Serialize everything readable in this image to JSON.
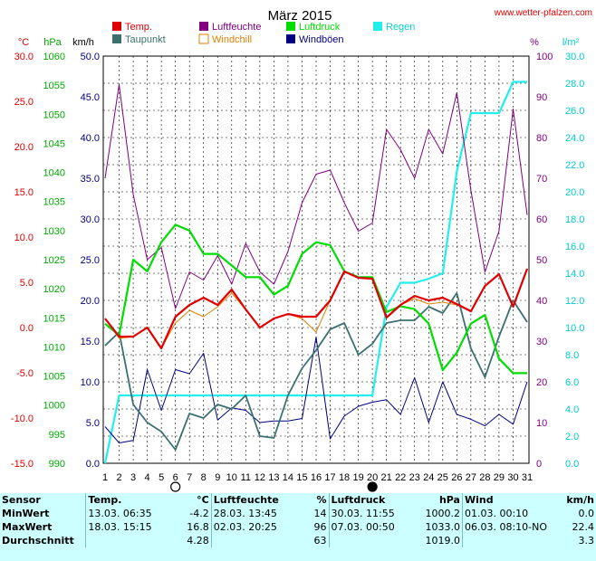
{
  "title": "März 2015",
  "source": "www.wetter-pfalzen.com",
  "axis_units": {
    "temp": "°C",
    "pressure": "hPa",
    "wind": "km/h",
    "humidity": "%",
    "rain": "l/m²"
  },
  "legend": [
    {
      "label": "Temp.",
      "color": "#e00000"
    },
    {
      "label": "Luftfeuchte",
      "color": "#800080"
    },
    {
      "label": "Luftdruck",
      "color": "#00dd00"
    },
    {
      "label": "Regen",
      "color": "#22eeee"
    },
    {
      "label": "Taupunkt",
      "color": "#3c7070"
    },
    {
      "label": "Windchill",
      "color": "#e08000"
    },
    {
      "label": "Windböen",
      "color": "#000080"
    }
  ],
  "chart_data": {
    "type": "line",
    "title": "März 2015",
    "x": [
      1,
      2,
      3,
      4,
      5,
      6,
      7,
      8,
      9,
      10,
      11,
      12,
      13,
      14,
      15,
      16,
      17,
      18,
      19,
      20,
      21,
      22,
      23,
      24,
      25,
      26,
      27,
      28,
      29,
      30,
      31
    ],
    "axes": {
      "temp": {
        "unit": "°C",
        "range": [
          -15,
          30
        ],
        "ticks": [
          "30.0",
          "25.0",
          "20.0",
          "15.0",
          "10.0",
          "5.0",
          "0.0",
          "-5.0",
          "-10.0",
          "-15.0"
        ]
      },
      "pressure": {
        "unit": "hPa",
        "range": [
          990,
          1060
        ],
        "ticks": [
          "1060",
          "1055",
          "1050",
          "1045",
          "1040",
          "1035",
          "1030",
          "1025",
          "1020",
          "1015",
          "1010",
          "1005",
          "1000",
          "995",
          "990"
        ]
      },
      "wind": {
        "unit": "km/h",
        "range": [
          0,
          50
        ],
        "ticks": [
          "50.0",
          "45.0",
          "40.0",
          "35.0",
          "30.0",
          "25.0",
          "20.0",
          "15.0",
          "10.0",
          "5.0",
          "0.0"
        ]
      },
      "humidity": {
        "unit": "%",
        "range": [
          0,
          100
        ],
        "ticks": [
          "100",
          "90",
          "80",
          "70",
          "60",
          "50",
          "40",
          "30",
          "20",
          "10",
          "0"
        ]
      },
      "rain": {
        "unit": "l/m²",
        "range": [
          0,
          30
        ],
        "ticks": [
          "30.0",
          "28.0",
          "26.0",
          "24.0",
          "22.0",
          "20.0",
          "18.0",
          "16.0",
          "14.0",
          "12.0",
          "10.0",
          "8.0",
          "6.0",
          "4.0",
          "2.0",
          "0.0"
        ]
      }
    },
    "moon_phases": [
      {
        "day": 6,
        "phase": "full"
      },
      {
        "day": 20,
        "phase": "new"
      }
    ],
    "series": [
      {
        "name": "Temp.",
        "axis": "temp",
        "color": "#e00000",
        "values": [
          1.0,
          -1.0,
          -1.0,
          0.0,
          -2.3,
          1.2,
          2.5,
          3.3,
          2.5,
          4.2,
          2.0,
          0.0,
          1.0,
          1.5,
          1.2,
          1.2,
          3.0,
          6.2,
          5.5,
          5.4,
          1.1,
          2.5,
          3.5,
          3.0,
          3.3,
          2.6,
          1.8,
          4.6,
          5.9,
          2.3,
          6.5
        ]
      },
      {
        "name": "Windchill",
        "axis": "temp",
        "color": "#e08000",
        "values": [
          1.0,
          -1.2,
          -1.0,
          0.0,
          -2.3,
          0.5,
          1.9,
          1.2,
          2.3,
          3.8,
          2.0,
          0.0,
          1.0,
          1.5,
          1.0,
          -0.5,
          3.0,
          6.2,
          5.5,
          5.4,
          1.1,
          2.5,
          3.2,
          2.6,
          2.8,
          2.5,
          1.8,
          4.6,
          5.9,
          2.3,
          6.5
        ]
      },
      {
        "name": "Taupunkt",
        "axis": "temp",
        "color": "#3c7070",
        "values": [
          -2.0,
          -0.5,
          -8.5,
          -10.5,
          -11.5,
          -13.5,
          -9.5,
          -10.0,
          -8.5,
          -9.0,
          -7.5,
          -12.0,
          -12.2,
          -7.5,
          -4.5,
          -2.5,
          -0.2,
          0.5,
          -3.0,
          -1.8,
          0.5,
          0.8,
          0.8,
          2.3,
          1.6,
          3.8,
          -2.3,
          -5.5,
          -1.0,
          3.0,
          0.6
        ]
      },
      {
        "name": "Luftfeuchte",
        "axis": "humidity",
        "color": "#800080",
        "values": [
          70,
          93,
          66,
          50,
          53,
          38,
          47,
          45,
          51,
          44,
          54,
          47,
          44,
          52,
          64,
          71,
          72,
          64,
          57,
          59,
          82,
          77,
          70,
          82,
          76,
          91,
          67,
          47,
          57,
          87,
          61
        ]
      },
      {
        "name": "Luftdruck",
        "axis": "pressure",
        "color": "#00dd00",
        "values": [
          1014,
          1012,
          1025,
          1023,
          1028,
          1031,
          1030,
          1026,
          1026,
          1024,
          1022,
          1022,
          1019,
          1020.5,
          1026,
          1028,
          1027.5,
          1023,
          1022,
          1022,
          1016,
          1017,
          1016.5,
          1014,
          1006,
          1009,
          1014,
          1015.5,
          1008,
          1005.5,
          1005.5
        ]
      },
      {
        "name": "Windböen",
        "axis": "wind",
        "color": "#000080",
        "values": [
          4.5,
          2.5,
          2.8,
          11.5,
          6.5,
          11.5,
          11.0,
          13.5,
          5.3,
          6.8,
          6.5,
          5.0,
          5.2,
          5.2,
          5.5,
          15.5,
          3.0,
          5.8,
          7.0,
          7.5,
          7.8,
          6.0,
          10.5,
          5.0,
          10.0,
          6.0,
          5.4,
          4.6,
          6.0,
          4.8,
          10.0
        ]
      },
      {
        "name": "Regen",
        "axis": "rain",
        "color": "#22eeee",
        "values": [
          0,
          5,
          5,
          5,
          5,
          5,
          5,
          5,
          5,
          5,
          5,
          5,
          5,
          5,
          5,
          5,
          5,
          5,
          5,
          5,
          11.5,
          13.3,
          13.3,
          13.6,
          14.0,
          21.5,
          25.8,
          25.8,
          25.8,
          28.1,
          28.1
        ]
      }
    ]
  },
  "stats": {
    "headers": [
      "Sensor",
      "Temp.",
      "°C",
      "Luftfeuchte",
      "%",
      "Luftdruck",
      "hPa",
      "Wind",
      "km/h"
    ],
    "rows": [
      {
        "label": "MinWert",
        "temp_time": "13.03.  06:35",
        "temp_val": "-4.2",
        "hum_time": "28.03.  13:45",
        "hum_val": "14",
        "press_time": "30.03.  11:55",
        "press_val": "1000.2",
        "wind_time": "01.03.  00:10",
        "wind_val": "0.0"
      },
      {
        "label": "MaxWert",
        "temp_time": "18.03.  15:15",
        "temp_val": "16.8",
        "hum_time": "02.03.  20:25",
        "hum_val": "96",
        "press_time": "07.03.  00:50",
        "press_val": "1033.0",
        "wind_time": "06.03.  08:10-NO",
        "wind_val": "22.4"
      },
      {
        "label": "Durchschnitt",
        "temp_time": "",
        "temp_val": "4.28",
        "hum_time": "",
        "hum_val": "63",
        "press_time": "",
        "press_val": "1019.0",
        "wind_time": "",
        "wind_val": "3.3"
      }
    ]
  }
}
